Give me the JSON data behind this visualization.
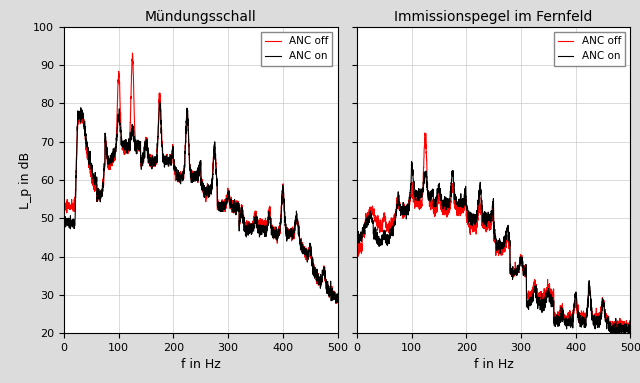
{
  "title_left": "Mündungsschall",
  "title_right": "Immissionspegel im Fernfeld",
  "xlabel": "f in Hz",
  "ylabel": "L_p in dB",
  "ylim": [
    20,
    100
  ],
  "xlim": [
    0,
    500
  ],
  "yticks": [
    20,
    30,
    40,
    50,
    60,
    70,
    80,
    90,
    100
  ],
  "xticks": [
    0,
    100,
    200,
    300,
    400,
    500
  ],
  "color_off": "#FF0000",
  "color_on": "#000000",
  "legend_off": "ANC off",
  "legend_on": "ANC on",
  "bg_color": "#DCDCDC",
  "plot_bg": "#FFFFFF",
  "linewidth": 0.8
}
